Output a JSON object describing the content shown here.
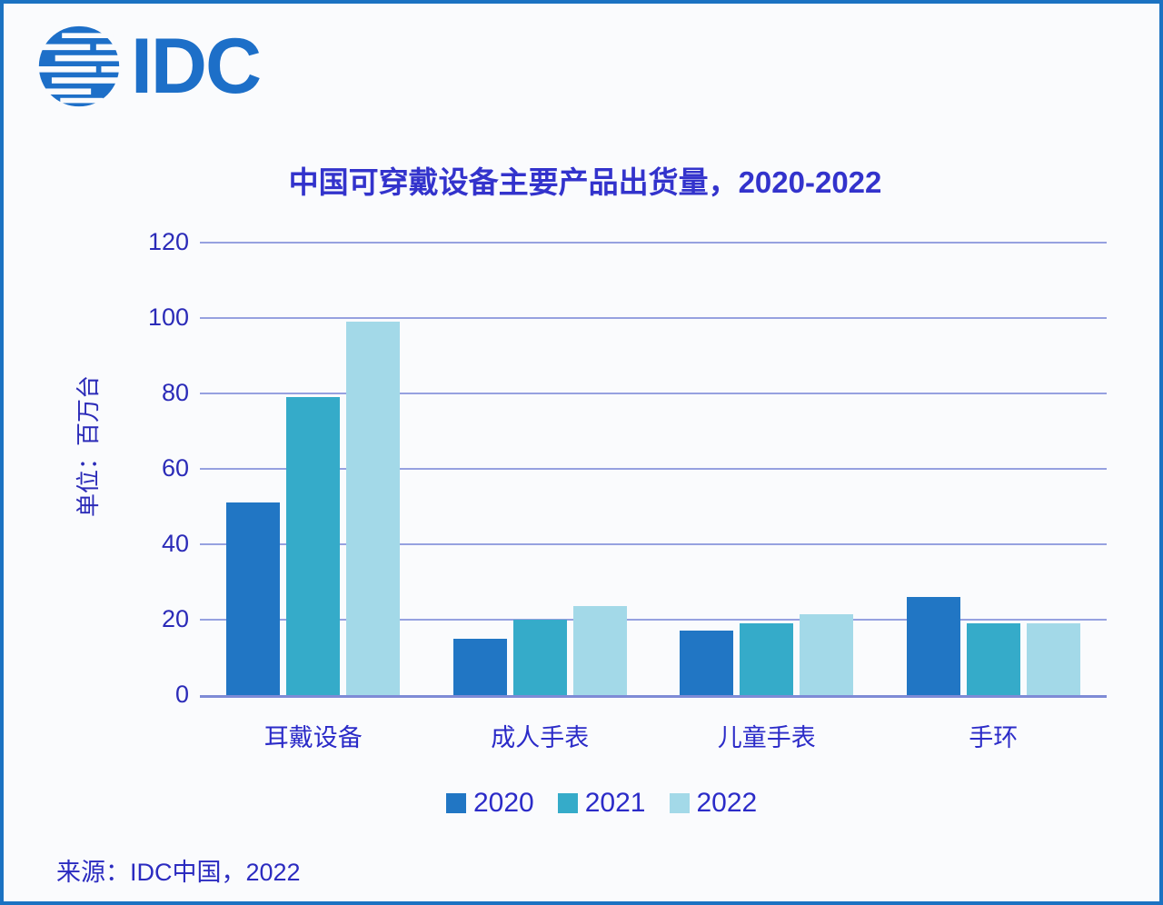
{
  "page": {
    "background": "#FAFBFD",
    "frame_color": "#1B72C2"
  },
  "logo": {
    "text": "IDC",
    "color": "#1D6FC8",
    "icon": "idc-globe-icon"
  },
  "chart_data": {
    "type": "bar",
    "title": "中国可穿戴设备主要产品出货量，2020-2022",
    "ylabel": "单位：百万台",
    "categories": [
      "耳戴设备",
      "成人手表",
      "儿童手表",
      "手环"
    ],
    "series": [
      {
        "name": "2020",
        "color": "#2176C4",
        "values": [
          51,
          15,
          17,
          26
        ]
      },
      {
        "name": "2021",
        "color": "#35ABC9",
        "values": [
          79,
          20,
          19,
          19
        ]
      },
      {
        "name": "2022",
        "color": "#A3D9E8",
        "values": [
          99,
          23.5,
          21.5,
          19
        ]
      }
    ],
    "ylim": [
      0,
      120
    ],
    "yticks": [
      0,
      20,
      40,
      60,
      80,
      100,
      120
    ],
    "grid": true,
    "legend_position": "bottom",
    "title_color": "#3333CC",
    "axis_text_color": "#2B2BB8",
    "gridline_color": "#96A1E0",
    "axis_line_color": "#7E8BD6"
  },
  "source": {
    "text": "来源：IDC中国，2022"
  }
}
